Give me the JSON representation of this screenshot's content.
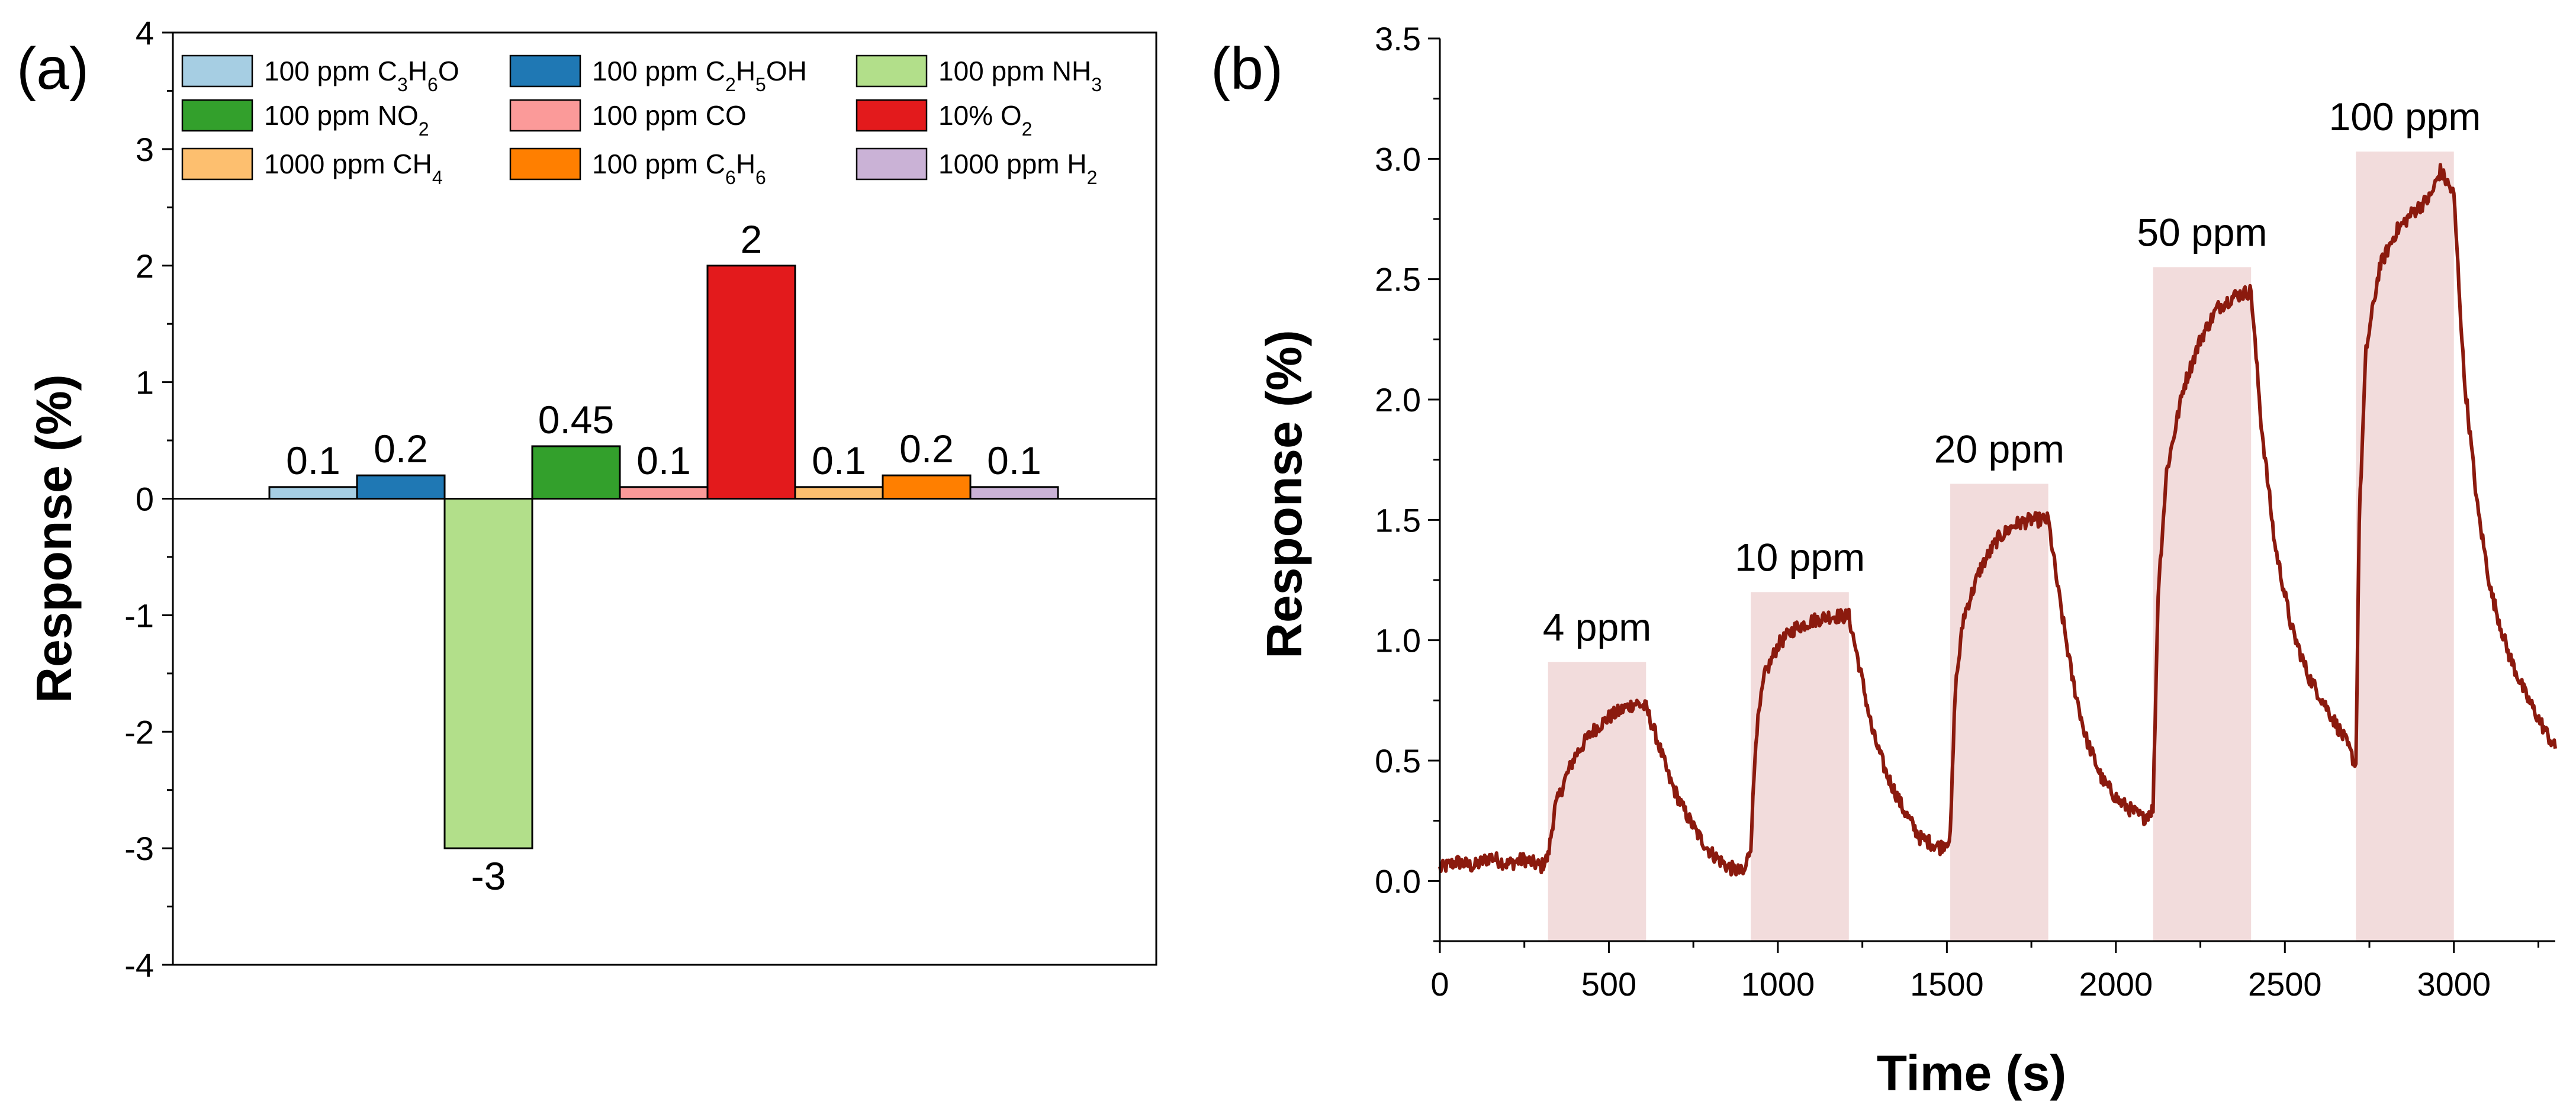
{
  "chart_data": [
    {
      "panel": "(a)",
      "type": "bar",
      "title": "",
      "xlabel": "",
      "ylabel": "Response (%)",
      "ylim": [
        -4,
        4
      ],
      "yticks": [
        "4",
        "3",
        "2",
        "1",
        "0",
        "-1",
        "-2",
        "-3",
        "-4"
      ],
      "ytick_values": [
        4,
        3,
        2,
        1,
        0,
        -1,
        -2,
        -3,
        -4
      ],
      "legend_position": "top",
      "categories": [
        {
          "pre": "100 ppm C",
          "s1": "3",
          "m1": "H",
          "s2": "6",
          "post": "O"
        },
        {
          "pre": "100 ppm C",
          "s1": "2",
          "m1": "H",
          "s2": "5",
          "post": "OH"
        },
        {
          "pre": "100 ppm NH",
          "s1": "3",
          "m1": "",
          "s2": "",
          "post": ""
        },
        {
          "pre": "100 ppm NO",
          "s1": "2",
          "m1": "",
          "s2": "",
          "post": ""
        },
        {
          "pre": "100 ppm CO",
          "s1": "",
          "m1": "",
          "s2": "",
          "post": ""
        },
        {
          "pre": "10% O",
          "s1": "2",
          "m1": "",
          "s2": "",
          "post": ""
        },
        {
          "pre": "1000 ppm CH",
          "s1": "4",
          "m1": "",
          "s2": "",
          "post": ""
        },
        {
          "pre": "100 ppm C",
          "s1": "6",
          "m1": "H",
          "s2": "6",
          "post": ""
        },
        {
          "pre": "1000 ppm H",
          "s1": "2",
          "m1": "",
          "s2": "",
          "post": ""
        }
      ],
      "values": [
        0.1,
        0.2,
        -3,
        0.45,
        0.1,
        2,
        0.1,
        0.2,
        0.1
      ],
      "value_labels": [
        "0.1",
        "0.2",
        "-3",
        "0.45",
        "0.1",
        "2",
        "0.1",
        "0.2",
        "0.1"
      ],
      "colors": [
        "#a6cee3",
        "#1f78b4",
        "#b2df8a",
        "#33a02c",
        "#fb9a99",
        "#e31a1c",
        "#fdbf6f",
        "#ff7f00",
        "#cab2d6"
      ]
    },
    {
      "panel": "(b)",
      "type": "line",
      "title": "",
      "xlabel": "Time (s)",
      "ylabel": "Response (%)",
      "xlim": [
        0,
        3300
      ],
      "ylim": [
        -0.25,
        3.5
      ],
      "xticks": [
        "0",
        "500",
        "1000",
        "1500",
        "2000",
        "2500",
        "3000"
      ],
      "xtick_values": [
        0,
        500,
        1000,
        1500,
        2000,
        2500,
        3000
      ],
      "yticks": [
        "0.0",
        "0.5",
        "1.0",
        "1.5",
        "2.0",
        "2.5",
        "3.0",
        "3.5"
      ],
      "ytick_values": [
        0,
        0.5,
        1.0,
        1.5,
        2.0,
        2.5,
        3.0,
        3.5
      ],
      "line_color": "#8b1a0e",
      "shade_color": "#f2dcdc",
      "exposures": [
        {
          "label": "4 ppm",
          "start": 320,
          "end": 610,
          "top": 0.91
        },
        {
          "label": "10 ppm",
          "start": 920,
          "end": 1210,
          "top": 1.2
        },
        {
          "label": "20 ppm",
          "start": 1510,
          "end": 1800,
          "top": 1.65
        },
        {
          "label": "50 ppm",
          "start": 2110,
          "end": 2400,
          "top": 2.55
        },
        {
          "label": "100 ppm",
          "start": 2710,
          "end": 3000,
          "top": 3.03
        }
      ],
      "series": [
        {
          "name": "Response",
          "x": [
            0,
            50,
            100,
            150,
            200,
            250,
            300,
            320,
            340,
            370,
            400,
            450,
            500,
            550,
            580,
            610,
            640,
            680,
            720,
            760,
            800,
            850,
            900,
            920,
            935,
            960,
            1000,
            1050,
            1100,
            1150,
            1210,
            1240,
            1280,
            1320,
            1370,
            1420,
            1480,
            1510,
            1525,
            1550,
            1600,
            1650,
            1700,
            1750,
            1800,
            1830,
            1870,
            1910,
            1960,
            2010,
            2080,
            2110,
            2125,
            2150,
            2200,
            2250,
            2300,
            2350,
            2400,
            2430,
            2470,
            2520,
            2570,
            2620,
            2680,
            2710,
            2720,
            2740,
            2780,
            2830,
            2880,
            2930,
            2960,
            3000,
            3030,
            3070,
            3110,
            3160,
            3210,
            3260,
            3300
          ],
          "y": [
            0.05,
            0.08,
            0.06,
            0.1,
            0.07,
            0.09,
            0.06,
            0.1,
            0.3,
            0.42,
            0.52,
            0.62,
            0.68,
            0.72,
            0.74,
            0.72,
            0.6,
            0.42,
            0.3,
            0.2,
            0.12,
            0.06,
            0.03,
            0.15,
            0.6,
            0.85,
            0.98,
            1.05,
            1.08,
            1.1,
            1.1,
            0.9,
            0.62,
            0.45,
            0.3,
            0.18,
            0.14,
            0.18,
            0.8,
            1.1,
            1.3,
            1.42,
            1.48,
            1.5,
            1.5,
            1.2,
            0.85,
            0.6,
            0.42,
            0.33,
            0.26,
            0.3,
            1.2,
            1.7,
            2.05,
            2.25,
            2.38,
            2.43,
            2.45,
            1.9,
            1.4,
            1.05,
            0.85,
            0.73,
            0.58,
            0.48,
            1.5,
            2.2,
            2.55,
            2.7,
            2.78,
            2.84,
            2.95,
            2.85,
            2.1,
            1.55,
            1.2,
            0.95,
            0.78,
            0.65,
            0.55
          ]
        }
      ]
    }
  ]
}
